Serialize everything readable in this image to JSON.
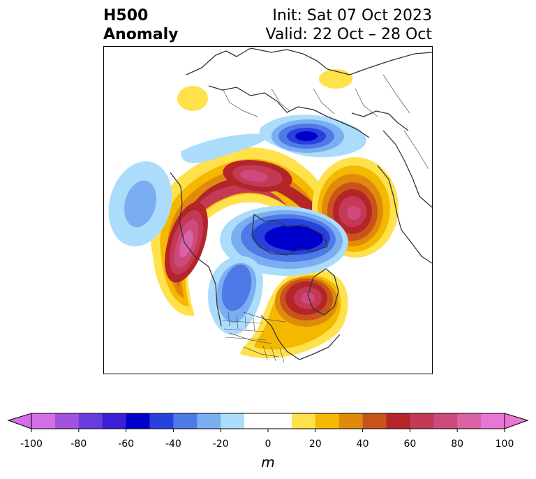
{
  "header": {
    "title_line1": "H500",
    "title_line2": "Anomaly",
    "init_line": "Init: Sat 07 Oct 2023",
    "valid_line": "Valid: 22 Oct – 28 Oct"
  },
  "colorbar": {
    "unit": "m",
    "tick_labels": [
      "-100",
      "-80",
      "-60",
      "-40",
      "-20",
      "0",
      "20",
      "40",
      "60",
      "80",
      "100"
    ],
    "levels": [
      -100,
      -90,
      -80,
      -70,
      -60,
      -50,
      -40,
      -30,
      -20,
      -10,
      10,
      20,
      30,
      40,
      50,
      60,
      70,
      80,
      90,
      100
    ],
    "colors": [
      "#d46ee6",
      "#a352de",
      "#6a3bdb",
      "#3b1fd6",
      "#0000cd",
      "#2742dc",
      "#4f79e6",
      "#7aaef0",
      "#acdcfb",
      "#ffffff",
      "#ffe14c",
      "#f5b800",
      "#e08a0b",
      "#c8541b",
      "#b4252a",
      "#c23a55",
      "#ce4a7d",
      "#da63a5",
      "#e876d4"
    ],
    "under_color": "#d46ee6",
    "over_color": "#e876d4"
  },
  "map": {
    "projection": "north-polar-stereographic",
    "features": [
      "coastlines",
      "country-borders",
      "state-borders"
    ]
  }
}
